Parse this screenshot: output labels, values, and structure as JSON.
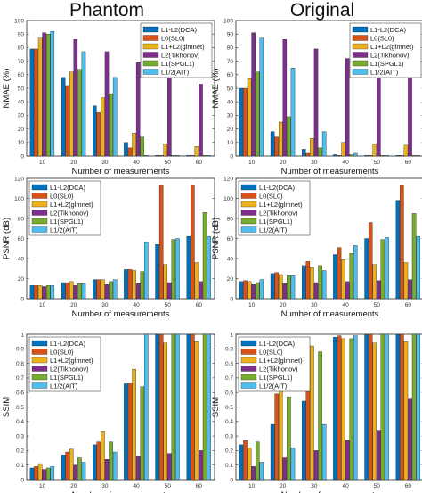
{
  "titles": {
    "left": "Phantom",
    "right": "Original"
  },
  "series_names": [
    "L1-L2(DCA)",
    "L0(SL0)",
    "L1+L2(glmnet)",
    "L2(Tikhonov)",
    "L1(SPGL1)",
    "L1/2(AIT)"
  ],
  "colors": [
    "#0072BD",
    "#D95319",
    "#EDB120",
    "#7E2F8E",
    "#77AC30",
    "#4DBEEE"
  ],
  "chart_data": [
    {
      "id": "nmae-phantom",
      "type": "bar",
      "title": "Phantom",
      "xlabel": "Number of measurements",
      "ylabel": "NMAE (%)",
      "categories": [
        "10",
        "20",
        "30",
        "40",
        "50",
        "60"
      ],
      "ylim": [
        0,
        100
      ],
      "yticks": [
        0,
        10,
        20,
        30,
        40,
        50,
        60,
        70,
        80,
        90,
        100
      ],
      "legend": "top-right",
      "grid": false,
      "series": [
        {
          "name": "L1-L2(DCA)",
          "values": [
            79,
            58,
            37,
            10,
            0.5,
            0.5
          ]
        },
        {
          "name": "L0(SL0)",
          "values": [
            79,
            52,
            32,
            6,
            0.5,
            0.5
          ]
        },
        {
          "name": "L1+L2(glmnet)",
          "values": [
            87,
            62,
            43,
            17,
            9,
            7
          ]
        },
        {
          "name": "L2(Tikhonov)",
          "values": [
            91,
            86,
            77,
            69,
            63,
            53
          ]
        },
        {
          "name": "L1(SPGL1)",
          "values": [
            90,
            64,
            46,
            14,
            0.5,
            0.5
          ]
        },
        {
          "name": "L1/2(AIT)",
          "values": [
            92,
            77,
            58,
            0.5,
            0.5,
            0.5
          ]
        }
      ]
    },
    {
      "id": "nmae-original",
      "type": "bar",
      "title": "Original",
      "xlabel": "Number of measurements",
      "ylabel": "NMAE (%)",
      "categories": [
        "10",
        "20",
        "30",
        "40",
        "50",
        "60"
      ],
      "ylim": [
        0,
        100
      ],
      "yticks": [
        0,
        10,
        20,
        30,
        40,
        50,
        60,
        70,
        80,
        90,
        100
      ],
      "legend": "top-right",
      "grid": false,
      "series": [
        {
          "name": "L1-L2(DCA)",
          "values": [
            50,
            18,
            5,
            1,
            0.5,
            0.5
          ]
        },
        {
          "name": "L0(SL0)",
          "values": [
            50,
            14,
            2,
            0.5,
            0.5,
            0.5
          ]
        },
        {
          "name": "L1+L2(glmnet)",
          "values": [
            57,
            25,
            13,
            10,
            9,
            8
          ]
        },
        {
          "name": "L2(Tikhonov)",
          "values": [
            91,
            86,
            79,
            72,
            68,
            62
          ]
        },
        {
          "name": "L1(SPGL1)",
          "values": [
            62,
            29,
            6,
            1,
            0.5,
            0.5
          ]
        },
        {
          "name": "L1/2(AIT)",
          "values": [
            87,
            65,
            18,
            2,
            0.5,
            0.5
          ]
        }
      ]
    },
    {
      "id": "psnr-phantom",
      "type": "bar",
      "xlabel": "Number of measurements",
      "ylabel": "PSNR (dB)",
      "categories": [
        "10",
        "20",
        "30",
        "40",
        "50",
        "60"
      ],
      "ylim": [
        0,
        120
      ],
      "yticks": [
        0,
        20,
        40,
        60,
        80,
        100,
        120
      ],
      "legend": "top-left",
      "grid": false,
      "series": [
        {
          "name": "L1-L2(DCA)",
          "values": [
            13,
            16,
            19,
            29,
            54,
            62
          ]
        },
        {
          "name": "L0(SL0)",
          "values": [
            13,
            16,
            19,
            29,
            113,
            113
          ]
        },
        {
          "name": "L1+L2(glmnet)",
          "values": [
            13,
            17,
            19,
            28,
            34,
            36
          ]
        },
        {
          "name": "L2(Tikhonov)",
          "values": [
            12,
            13,
            14,
            15,
            16,
            17
          ]
        },
        {
          "name": "L1(SPGL1)",
          "values": [
            13,
            15,
            17,
            27,
            59,
            86
          ]
        },
        {
          "name": "L1/2(AIT)",
          "values": [
            13,
            15,
            19,
            56,
            60,
            62
          ]
        }
      ]
    },
    {
      "id": "psnr-original",
      "type": "bar",
      "xlabel": "Number of measurements",
      "ylabel": "PSNR (dB)",
      "categories": [
        "10",
        "20",
        "30",
        "40",
        "50",
        "60"
      ],
      "ylim": [
        0,
        120
      ],
      "yticks": [
        0,
        20,
        40,
        60,
        80,
        100,
        120
      ],
      "legend": "top-left",
      "grid": false,
      "series": [
        {
          "name": "L1-L2(DCA)",
          "values": [
            17,
            25,
            33,
            44,
            60,
            98
          ]
        },
        {
          "name": "L0(SL0)",
          "values": [
            18,
            26,
            37,
            51,
            76,
            113
          ]
        },
        {
          "name": "L1+L2(glmnet)",
          "values": [
            17,
            24,
            31,
            39,
            34,
            36
          ]
        },
        {
          "name": "L2(Tikhonov)",
          "values": [
            14,
            15,
            16,
            17,
            18,
            19
          ]
        },
        {
          "name": "L1(SPGL1)",
          "values": [
            16,
            23,
            33,
            45,
            59,
            85
          ]
        },
        {
          "name": "L1/2(AIT)",
          "values": [
            19,
            23,
            28,
            53,
            61,
            62
          ]
        }
      ]
    },
    {
      "id": "ssim-phantom",
      "type": "bar",
      "xlabel": "Number of measurements",
      "ylabel": "SSIM",
      "categories": [
        "10",
        "20",
        "30",
        "40",
        "50",
        "60"
      ],
      "ylim": [
        0,
        1
      ],
      "yticks": [
        0,
        0.1,
        0.2,
        0.3,
        0.4,
        0.5,
        0.6,
        0.7,
        0.8,
        0.9,
        1
      ],
      "legend": "top-left",
      "grid": false,
      "series": [
        {
          "name": "L1-L2(DCA)",
          "values": [
            0.08,
            0.17,
            0.24,
            0.66,
            1.0,
            1.0
          ]
        },
        {
          "name": "L0(SL0)",
          "values": [
            0.09,
            0.19,
            0.26,
            0.66,
            1.0,
            1.0
          ]
        },
        {
          "name": "L1+L2(glmnet)",
          "values": [
            0.11,
            0.21,
            0.33,
            0.76,
            0.94,
            0.95
          ]
        },
        {
          "name": "L2(Tikhonov)",
          "values": [
            0.07,
            0.1,
            0.14,
            0.16,
            0.18,
            0.2
          ]
        },
        {
          "name": "L1(SPGL1)",
          "values": [
            0.08,
            0.15,
            0.26,
            0.64,
            1.0,
            1.0
          ]
        },
        {
          "name": "L1/2(AIT)",
          "values": [
            0.09,
            0.12,
            0.19,
            1.0,
            1.0,
            1.0
          ]
        }
      ]
    },
    {
      "id": "ssim-original",
      "type": "bar",
      "xlabel": "Number of measurements",
      "ylabel": "SSIM",
      "categories": [
        "10",
        "20",
        "30",
        "40",
        "50",
        "60"
      ],
      "ylim": [
        0,
        1
      ],
      "yticks": [
        0,
        0.1,
        0.2,
        0.3,
        0.4,
        0.5,
        0.6,
        0.7,
        0.8,
        0.9,
        1
      ],
      "legend": "top-left",
      "grid": false,
      "series": [
        {
          "name": "L1-L2(DCA)",
          "values": [
            0.24,
            0.38,
            0.54,
            0.98,
            1.0,
            1.0
          ]
        },
        {
          "name": "L0(SL0)",
          "values": [
            0.27,
            0.59,
            0.93,
            0.99,
            1.0,
            1.0
          ]
        },
        {
          "name": "L1+L2(glmnet)",
          "values": [
            0.22,
            0.63,
            0.92,
            0.97,
            0.94,
            0.95
          ]
        },
        {
          "name": "L2(Tikhonov)",
          "values": [
            0.09,
            0.15,
            0.2,
            0.27,
            0.34,
            0.56
          ]
        },
        {
          "name": "L1(SPGL1)",
          "values": [
            0.26,
            0.57,
            0.88,
            0.97,
            1.0,
            1.0
          ]
        },
        {
          "name": "L1/2(AIT)",
          "values": [
            0.12,
            0.22,
            0.38,
            0.99,
            1.0,
            1.0
          ]
        }
      ]
    }
  ]
}
